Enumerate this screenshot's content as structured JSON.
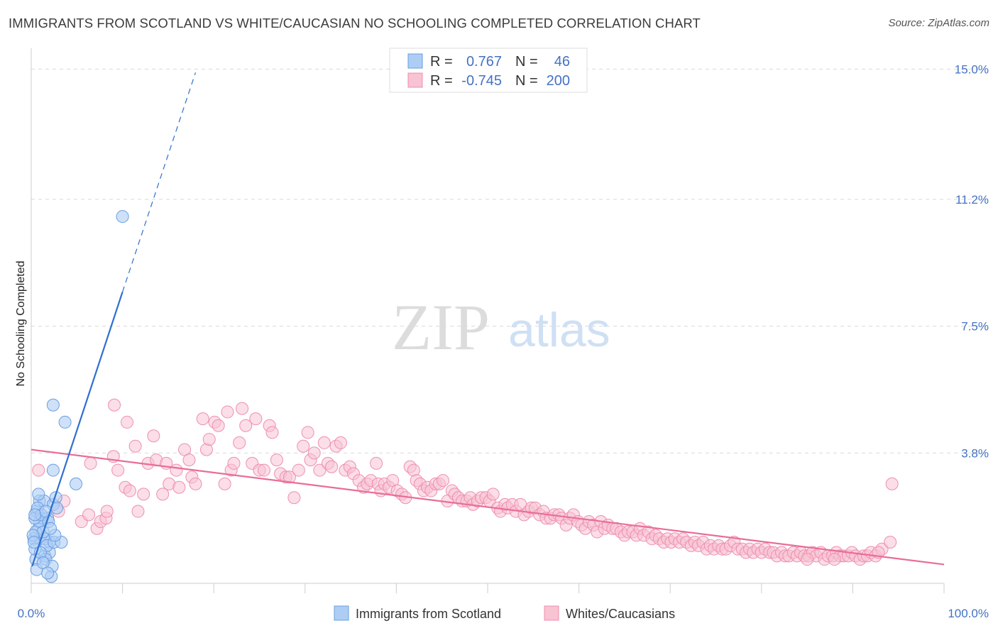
{
  "title": "IMMIGRANTS FROM SCOTLAND VS WHITE/CAUCASIAN NO SCHOOLING COMPLETED CORRELATION CHART",
  "source": "Source: ZipAtlas.com",
  "watermark": {
    "zip": "ZIP",
    "atlas": "atlas"
  },
  "colors": {
    "blue_fill": "#aecdf5",
    "blue_stroke": "#6a9ee0",
    "blue_line": "#2e6fcf",
    "pink_fill": "#f8c3d3",
    "pink_stroke": "#ee8fae",
    "pink_line": "#e86d98",
    "axis_label": "#4472c4",
    "grid": "#d9d9d9"
  },
  "legend": {
    "rows": [
      {
        "r_label": "R =",
        "r_value": "0.767",
        "n_label": "N =",
        "n_value": "46",
        "series": "blue"
      },
      {
        "r_label": "R =",
        "r_value": "-0.745",
        "n_label": "N =",
        "n_value": "200",
        "series": "pink"
      }
    ]
  },
  "chart_data": {
    "type": "scatter",
    "title": "IMMIGRANTS FROM SCOTLAND VS WHITE/CAUCASIAN NO SCHOOLING COMPLETED CORRELATION CHART",
    "xlabel": "",
    "ylabel": "No Schooling Completed",
    "xlim": [
      0,
      100
    ],
    "ylim": [
      0,
      15.4
    ],
    "x_tick_labels": [
      "0.0%",
      "100.0%"
    ],
    "y_ticks": [
      3.8,
      7.5,
      11.2,
      15.0
    ],
    "y_tick_labels": [
      "3.8%",
      "7.5%",
      "11.2%",
      "15.0%"
    ],
    "grid": "horizontal dashed",
    "legend_position": "top-center",
    "series": [
      {
        "name": "Immigrants from Scotland",
        "color": "blue",
        "trend": {
          "x0": 0.1,
          "y0": 0.5,
          "x1": 10.0,
          "y1": 8.5,
          "dash_to_x": 18.0,
          "dash_to_y": 14.9
        },
        "points": [
          [
            0.5,
            0.7
          ],
          [
            1.5,
            0.8
          ],
          [
            2.0,
            1.2
          ],
          [
            1.0,
            1.3
          ],
          [
            0.8,
            1.6
          ],
          [
            1.2,
            1.9
          ],
          [
            0.6,
            2.1
          ],
          [
            1.8,
            1.9
          ],
          [
            0.9,
            2.4
          ],
          [
            1.4,
            2.4
          ],
          [
            2.4,
            2.3
          ],
          [
            2.7,
            2.5
          ],
          [
            1.5,
            1.3
          ],
          [
            2.0,
            0.9
          ],
          [
            1.6,
            0.7
          ],
          [
            2.2,
            0.2
          ],
          [
            0.3,
            1.3
          ],
          [
            0.4,
            1.0
          ],
          [
            0.5,
            1.5
          ],
          [
            0.9,
            1.8
          ],
          [
            1.3,
            1.5
          ],
          [
            1.7,
            1.1
          ],
          [
            2.5,
            1.2
          ],
          [
            3.3,
            1.2
          ],
          [
            2.4,
            3.3
          ],
          [
            4.9,
            2.9
          ],
          [
            2.4,
            5.2
          ],
          [
            3.7,
            4.7
          ],
          [
            10.0,
            10.7
          ],
          [
            0.4,
            1.9
          ],
          [
            0.7,
            2.2
          ],
          [
            1.1,
            2.0
          ],
          [
            1.9,
            1.8
          ],
          [
            2.3,
            0.5
          ],
          [
            0.6,
            0.4
          ],
          [
            1.0,
            0.9
          ],
          [
            1.3,
            0.6
          ],
          [
            1.8,
            0.3
          ],
          [
            2.6,
            1.4
          ],
          [
            0.2,
            1.4
          ],
          [
            0.4,
            2.0
          ],
          [
            0.8,
            2.6
          ],
          [
            1.6,
            2.1
          ],
          [
            2.1,
            1.6
          ],
          [
            2.8,
            2.2
          ],
          [
            0.3,
            1.2
          ]
        ]
      },
      {
        "name": "Whites/Caucasians",
        "color": "pink",
        "trend": {
          "x0": 0.0,
          "y0": 3.9,
          "x1": 100.0,
          "y1": 0.55
        },
        "points": [
          [
            0.8,
            3.3
          ],
          [
            3.0,
            2.1
          ],
          [
            3.6,
            2.4
          ],
          [
            5.5,
            1.8
          ],
          [
            6.3,
            2.0
          ],
          [
            7.2,
            1.6
          ],
          [
            6.5,
            3.5
          ],
          [
            7.6,
            1.8
          ],
          [
            8.2,
            1.9
          ],
          [
            8.3,
            2.1
          ],
          [
            9.0,
            3.7
          ],
          [
            9.1,
            5.2
          ],
          [
            9.5,
            3.3
          ],
          [
            10.3,
            2.8
          ],
          [
            10.5,
            4.7
          ],
          [
            10.8,
            2.7
          ],
          [
            11.4,
            4.0
          ],
          [
            11.7,
            2.1
          ],
          [
            12.3,
            2.6
          ],
          [
            12.8,
            3.5
          ],
          [
            13.4,
            4.3
          ],
          [
            13.7,
            3.6
          ],
          [
            14.4,
            2.6
          ],
          [
            14.8,
            3.5
          ],
          [
            15.1,
            2.9
          ],
          [
            15.9,
            3.3
          ],
          [
            16.2,
            2.8
          ],
          [
            16.8,
            3.9
          ],
          [
            17.3,
            3.6
          ],
          [
            17.6,
            3.1
          ],
          [
            18.0,
            2.9
          ],
          [
            18.8,
            4.8
          ],
          [
            19.2,
            3.9
          ],
          [
            19.5,
            4.2
          ],
          [
            20.1,
            4.7
          ],
          [
            20.5,
            4.6
          ],
          [
            21.2,
            2.9
          ],
          [
            21.5,
            5.0
          ],
          [
            21.9,
            3.3
          ],
          [
            22.2,
            3.5
          ],
          [
            22.8,
            4.1
          ],
          [
            23.1,
            5.1
          ],
          [
            23.5,
            4.6
          ],
          [
            24.2,
            3.5
          ],
          [
            24.6,
            4.8
          ],
          [
            25.0,
            3.3
          ],
          [
            25.5,
            3.3
          ],
          [
            26.1,
            4.6
          ],
          [
            26.4,
            4.4
          ],
          [
            26.9,
            3.6
          ],
          [
            27.3,
            3.2
          ],
          [
            27.9,
            3.1
          ],
          [
            28.3,
            3.1
          ],
          [
            28.8,
            2.5
          ],
          [
            29.3,
            3.3
          ],
          [
            29.8,
            4.0
          ],
          [
            30.3,
            4.4
          ],
          [
            30.6,
            3.6
          ],
          [
            31.0,
            3.8
          ],
          [
            31.6,
            3.3
          ],
          [
            32.1,
            4.1
          ],
          [
            32.5,
            3.5
          ],
          [
            32.9,
            3.4
          ],
          [
            33.4,
            4.0
          ],
          [
            33.9,
            4.1
          ],
          [
            34.4,
            3.3
          ],
          [
            34.9,
            3.4
          ],
          [
            35.3,
            3.2
          ],
          [
            35.9,
            3.0
          ],
          [
            36.4,
            2.8
          ],
          [
            36.8,
            2.9
          ],
          [
            37.2,
            3.0
          ],
          [
            37.8,
            3.5
          ],
          [
            38.0,
            2.9
          ],
          [
            38.3,
            2.7
          ],
          [
            38.7,
            2.9
          ],
          [
            39.2,
            2.8
          ],
          [
            39.6,
            3.0
          ],
          [
            40.1,
            2.7
          ],
          [
            40.6,
            2.6
          ],
          [
            41.0,
            2.5
          ],
          [
            41.5,
            3.4
          ],
          [
            41.9,
            3.3
          ],
          [
            42.2,
            3.0
          ],
          [
            42.6,
            2.9
          ],
          [
            43.0,
            2.7
          ],
          [
            43.4,
            2.8
          ],
          [
            43.8,
            2.7
          ],
          [
            44.3,
            2.9
          ],
          [
            44.7,
            2.9
          ],
          [
            45.1,
            3.0
          ],
          [
            45.6,
            2.4
          ],
          [
            46.1,
            2.7
          ],
          [
            46.4,
            2.6
          ],
          [
            46.8,
            2.5
          ],
          [
            47.2,
            2.4
          ],
          [
            47.7,
            2.4
          ],
          [
            48.1,
            2.5
          ],
          [
            48.4,
            2.3
          ],
          [
            48.9,
            2.4
          ],
          [
            49.3,
            2.5
          ],
          [
            49.8,
            2.5
          ],
          [
            50.2,
            2.4
          ],
          [
            50.6,
            2.6
          ],
          [
            51.1,
            2.2
          ],
          [
            51.4,
            2.1
          ],
          [
            51.9,
            2.3
          ],
          [
            52.2,
            2.2
          ],
          [
            52.7,
            2.3
          ],
          [
            53.1,
            2.1
          ],
          [
            53.6,
            2.3
          ],
          [
            54.0,
            2.0
          ],
          [
            54.5,
            2.1
          ],
          [
            54.8,
            2.2
          ],
          [
            55.2,
            2.2
          ],
          [
            55.7,
            2.0
          ],
          [
            56.1,
            2.1
          ],
          [
            56.4,
            1.9
          ],
          [
            56.9,
            1.9
          ],
          [
            57.3,
            2.0
          ],
          [
            57.8,
            2.0
          ],
          [
            58.1,
            1.9
          ],
          [
            58.6,
            1.7
          ],
          [
            59.0,
            1.9
          ],
          [
            59.4,
            2.0
          ],
          [
            59.9,
            1.8
          ],
          [
            60.3,
            1.7
          ],
          [
            60.7,
            1.6
          ],
          [
            61.1,
            1.8
          ],
          [
            61.6,
            1.7
          ],
          [
            62.0,
            1.5
          ],
          [
            62.4,
            1.8
          ],
          [
            62.8,
            1.6
          ],
          [
            63.2,
            1.7
          ],
          [
            63.7,
            1.6
          ],
          [
            64.1,
            1.6
          ],
          [
            64.6,
            1.5
          ],
          [
            65.0,
            1.4
          ],
          [
            65.4,
            1.5
          ],
          [
            65.9,
            1.5
          ],
          [
            66.3,
            1.4
          ],
          [
            66.7,
            1.6
          ],
          [
            67.1,
            1.4
          ],
          [
            67.6,
            1.5
          ],
          [
            68.0,
            1.3
          ],
          [
            68.4,
            1.4
          ],
          [
            68.8,
            1.3
          ],
          [
            69.3,
            1.2
          ],
          [
            69.7,
            1.3
          ],
          [
            70.1,
            1.2
          ],
          [
            70.5,
            1.3
          ],
          [
            71.0,
            1.2
          ],
          [
            71.4,
            1.3
          ],
          [
            71.8,
            1.2
          ],
          [
            72.3,
            1.1
          ],
          [
            72.7,
            1.2
          ],
          [
            73.1,
            1.1
          ],
          [
            73.6,
            1.2
          ],
          [
            74.0,
            1.0
          ],
          [
            74.4,
            1.1
          ],
          [
            74.8,
            1.0
          ],
          [
            75.3,
            1.1
          ],
          [
            75.7,
            1.0
          ],
          [
            76.1,
            1.0
          ],
          [
            76.6,
            1.1
          ],
          [
            77.0,
            1.2
          ],
          [
            77.4,
            1.0
          ],
          [
            77.9,
            1.0
          ],
          [
            78.3,
            0.9
          ],
          [
            78.7,
            1.0
          ],
          [
            79.1,
            0.9
          ],
          [
            79.6,
            1.0
          ],
          [
            80.0,
            0.9
          ],
          [
            80.4,
            1.0
          ],
          [
            80.9,
            0.9
          ],
          [
            81.3,
            0.9
          ],
          [
            81.7,
            0.8
          ],
          [
            82.2,
            0.9
          ],
          [
            82.6,
            0.8
          ],
          [
            83.0,
            0.8
          ],
          [
            83.5,
            0.9
          ],
          [
            83.9,
            0.8
          ],
          [
            84.3,
            0.9
          ],
          [
            84.7,
            0.8
          ],
          [
            85.2,
            0.8
          ],
          [
            85.6,
            0.9
          ],
          [
            86.0,
            0.8
          ],
          [
            86.5,
            0.9
          ],
          [
            86.9,
            0.7
          ],
          [
            87.3,
            0.8
          ],
          [
            87.8,
            0.8
          ],
          [
            88.2,
            0.9
          ],
          [
            88.6,
            0.8
          ],
          [
            89.0,
            0.8
          ],
          [
            89.5,
            0.8
          ],
          [
            89.9,
            0.9
          ],
          [
            90.3,
            0.8
          ],
          [
            90.8,
            0.7
          ],
          [
            91.2,
            0.8
          ],
          [
            91.6,
            0.8
          ],
          [
            92.0,
            0.9
          ],
          [
            92.5,
            0.8
          ],
          [
            93.2,
            1.0
          ],
          [
            94.1,
            1.2
          ],
          [
            94.3,
            2.9
          ],
          [
            92.8,
            0.9
          ],
          [
            88.0,
            0.7
          ],
          [
            85.0,
            0.7
          ]
        ]
      }
    ]
  },
  "bottom_legend": [
    {
      "label": "Immigrants from Scotland",
      "series": "blue"
    },
    {
      "label": "Whites/Caucasians",
      "series": "pink"
    }
  ]
}
